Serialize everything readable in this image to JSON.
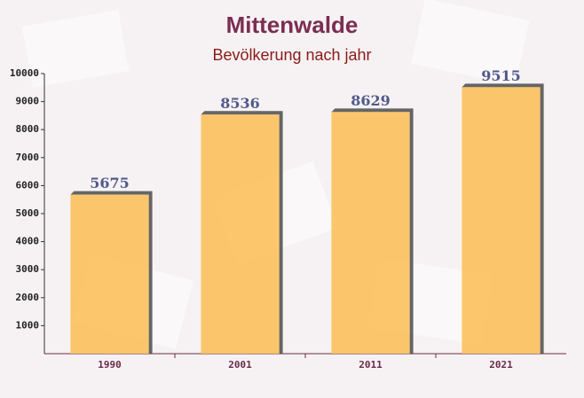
{
  "chart_data": {
    "type": "bar",
    "title": "Mittenwalde",
    "subtitle": "Bevölkerung nach jahr",
    "categories": [
      "1990",
      "2001",
      "2011",
      "2021"
    ],
    "values": [
      5675,
      8536,
      8629,
      9515
    ],
    "color": "#fcc15c",
    "ylim": [
      0,
      10000
    ],
    "yticks": [
      1000,
      2000,
      3000,
      4000,
      5000,
      6000,
      7000,
      8000,
      9000,
      10000
    ],
    "grid": false
  }
}
